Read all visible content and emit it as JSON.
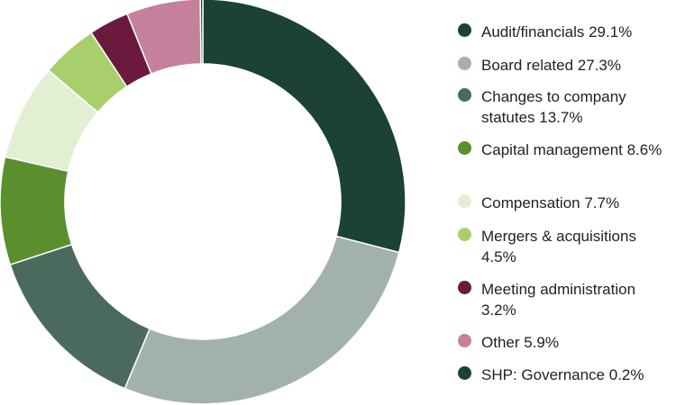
{
  "chart_data": {
    "type": "pie",
    "variant": "donut",
    "title": "",
    "legend_position": "right",
    "unit": "%",
    "start_angle_deg": 0,
    "direction": "clockwise",
    "series": [
      {
        "label": "Audit/financials 29.1%",
        "value": 29.1,
        "color": "#1b4234"
      },
      {
        "label": "Board related 27.3%",
        "value": 27.3,
        "color": "#a3b1ad"
      },
      {
        "label": "Changes to company statutes 13.7%",
        "value": 13.7,
        "color": "#4b6a5e"
      },
      {
        "label": "Capital management 8.6%",
        "value": 8.6,
        "color": "#5a8f2e"
      },
      {
        "label": "Compensation 7.7%",
        "value": 7.7,
        "color": "#e3efd2"
      },
      {
        "label": "Mergers & acquisitions 4.5%",
        "value": 4.5,
        "color": "#a9cf6c"
      },
      {
        "label": "Meeting administration 3.2%",
        "value": 3.2,
        "color": "#6b1a3e"
      },
      {
        "label": "Other 5.9%",
        "value": 5.9,
        "color": "#c4809c"
      },
      {
        "label": "SHP: Governance 0.2%",
        "value": 0.2,
        "color": "#1b4234"
      }
    ]
  }
}
